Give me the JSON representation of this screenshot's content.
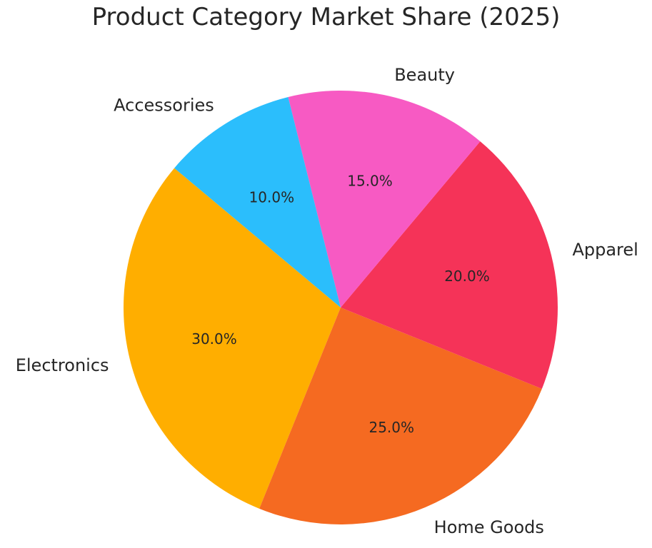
{
  "chart_data": {
    "type": "pie",
    "title": "Product Category Market Share (2025)",
    "categories": [
      "Electronics",
      "Home Goods",
      "Apparel",
      "Beauty",
      "Accessories"
    ],
    "values": [
      30.0,
      25.0,
      20.0,
      15.0,
      10.0
    ],
    "labels_pct": [
      "30.0%",
      "25.0%",
      "20.0%",
      "15.0%",
      "10.0%"
    ],
    "colors": [
      "#FFAE00",
      "#F56A21",
      "#F53358",
      "#F75AC3",
      "#2BBEFC"
    ],
    "start_angle": 140,
    "direction": "counterclockwise",
    "legend": "none"
  }
}
